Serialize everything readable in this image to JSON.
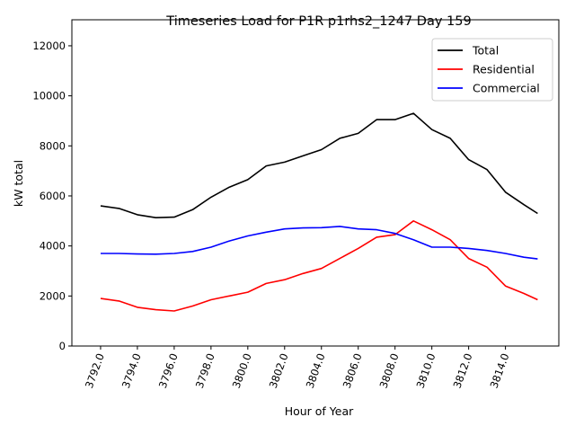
{
  "chart_data": {
    "type": "line",
    "title": "Timeseries Load for P1R p1rhs2_1247  Day 159",
    "xlabel": "Hour of Year",
    "ylabel": "kW total",
    "xlim": [
      3790.44,
      3816.9
    ],
    "ylim": [
      0,
      13040
    ],
    "grid": false,
    "legend_position": "top-right",
    "x_ticks": [
      3792,
      3794,
      3796,
      3798,
      3800,
      3802,
      3804,
      3806,
      3808,
      3810,
      3812,
      3814
    ],
    "x_tick_labels": [
      "3792.0",
      "3794.0",
      "3796.0",
      "3798.0",
      "3800.0",
      "3802.0",
      "3804.0",
      "3806.0",
      "3808.0",
      "3810.0",
      "3812.0",
      "3814.0"
    ],
    "y_ticks": [
      0,
      2000,
      4000,
      6000,
      8000,
      10000,
      12000
    ],
    "y_tick_labels": [
      "0",
      "2000",
      "4000",
      "6000",
      "8000",
      "10000",
      "12000"
    ],
    "x": [
      3792,
      3793,
      3794,
      3795,
      3796,
      3797,
      3798,
      3799,
      3800,
      3801,
      3802,
      3803,
      3804,
      3805,
      3806,
      3807,
      3808,
      3809,
      3810,
      3811,
      3812,
      3813,
      3814,
      3815,
      3815.75
    ],
    "series": [
      {
        "name": "Total",
        "color": "#000000",
        "values": [
          5600,
          5500,
          5250,
          5130,
          5150,
          5450,
          5950,
          6350,
          6650,
          7200,
          7350,
          7600,
          7850,
          8300,
          8500,
          9050,
          9050,
          9300,
          8650,
          8300,
          7450,
          7050,
          6150,
          5650,
          5300
        ]
      },
      {
        "name": "Residential",
        "color": "#ff0000",
        "values": [
          1900,
          1800,
          1550,
          1450,
          1400,
          1600,
          1850,
          2000,
          2150,
          2500,
          2650,
          2900,
          3100,
          3500,
          3900,
          4350,
          4450,
          5000,
          4650,
          4250,
          3500,
          3150,
          2400,
          2100,
          1850
        ]
      },
      {
        "name": "Commercial",
        "color": "#0000ff",
        "values": [
          3700,
          3700,
          3680,
          3670,
          3700,
          3780,
          3950,
          4200,
          4400,
          4550,
          4680,
          4720,
          4730,
          4780,
          4680,
          4650,
          4500,
          4250,
          3950,
          3950,
          3900,
          3820,
          3700,
          3550,
          3480
        ]
      }
    ]
  }
}
